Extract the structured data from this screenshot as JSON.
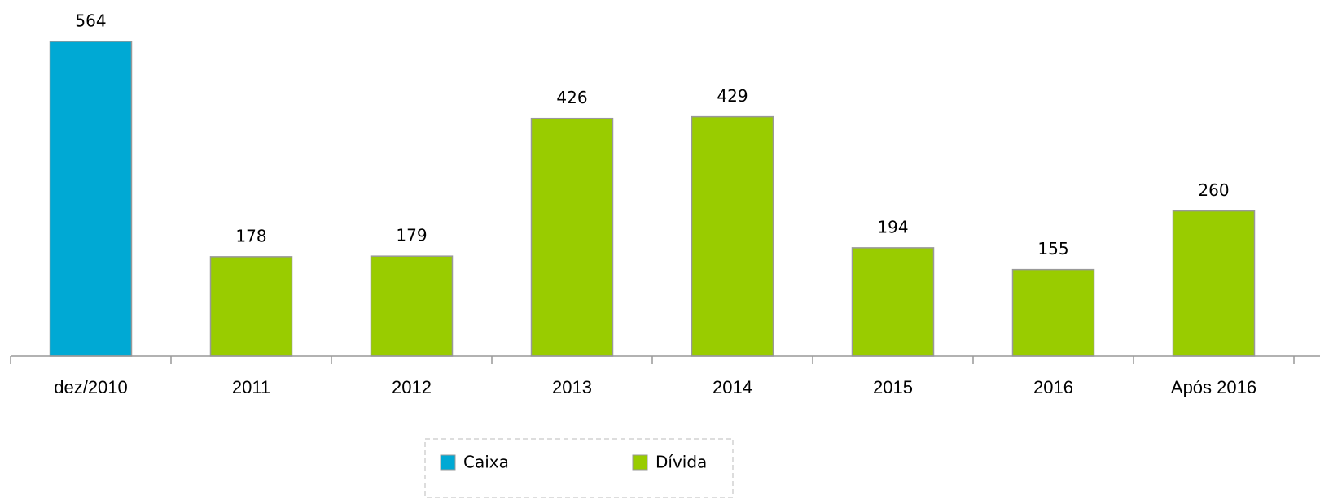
{
  "chart_data": {
    "type": "bar",
    "categories": [
      "dez/2010",
      "2011",
      "2012",
      "2013",
      "2014",
      "2015",
      "2016",
      "Após 2016"
    ],
    "series": [
      {
        "name": "Caixa",
        "color": "#00a9d4",
        "values": [
          564,
          null,
          null,
          null,
          null,
          null,
          null,
          null
        ]
      },
      {
        "name": "Dívida",
        "color": "#99cc00",
        "values": [
          null,
          178,
          179,
          426,
          429,
          194,
          155,
          260
        ]
      }
    ],
    "legend": "bottom"
  }
}
